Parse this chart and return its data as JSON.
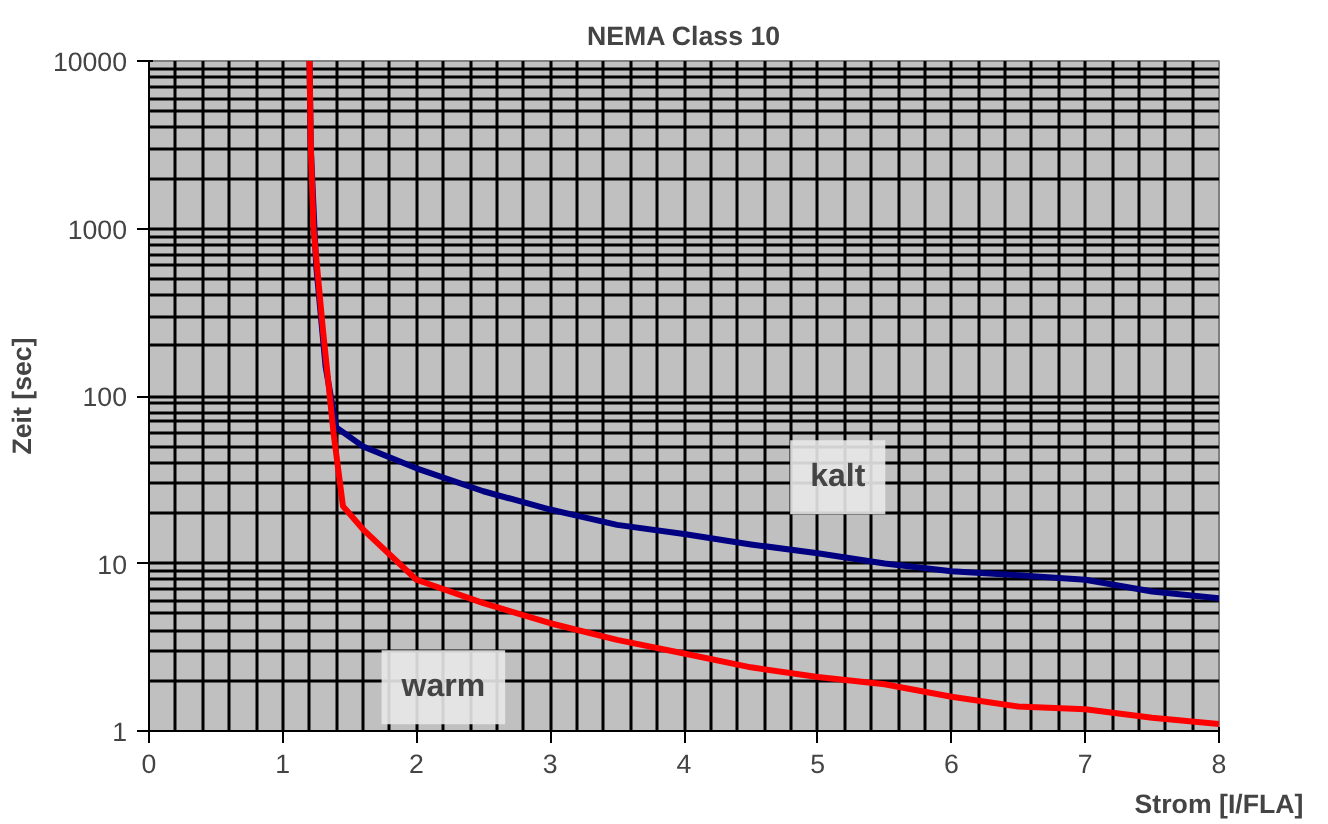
{
  "chart_data": {
    "type": "line",
    "title": "NEMA Class 10",
    "xlabel": "Strom [I/FLA]",
    "ylabel": "Zeit [sec]",
    "log": "y",
    "grid": true,
    "marker": "none",
    "line_style": "solid",
    "xlim": [
      0,
      8
    ],
    "xticks": [
      0,
      1,
      2,
      3,
      4,
      5,
      6,
      7,
      8
    ],
    "ylim": [
      1,
      10000
    ],
    "yticks": [
      1,
      10,
      100,
      1000,
      10000
    ],
    "series": [
      {
        "name": "kalt",
        "color": "#000080",
        "x": [
          1.2,
          1.21,
          1.25,
          1.32,
          1.4,
          1.6,
          2,
          2.5,
          3,
          3.5,
          4,
          4.5,
          5,
          5.5,
          6,
          6.5,
          7,
          7.5,
          8
        ],
        "values": [
          10000,
          3000,
          600,
          150,
          65,
          50,
          37,
          27,
          21,
          17,
          15,
          13,
          11.5,
          10,
          9,
          8.5,
          8,
          6.8,
          6.2
        ]
      },
      {
        "name": "warm",
        "color": "#ff0000",
        "x": [
          1.2,
          1.21,
          1.23,
          1.3,
          1.38,
          1.45,
          1.6,
          2,
          2.5,
          3,
          3.5,
          4,
          4.5,
          5,
          5.5,
          6,
          6.5,
          7,
          7.5,
          8
        ],
        "values": [
          10000,
          3000,
          1000,
          250,
          60,
          22,
          16,
          8,
          5.8,
          4.4,
          3.5,
          2.9,
          2.4,
          2.1,
          1.9,
          1.6,
          1.4,
          1.35,
          1.2,
          1.1
        ]
      }
    ]
  }
}
